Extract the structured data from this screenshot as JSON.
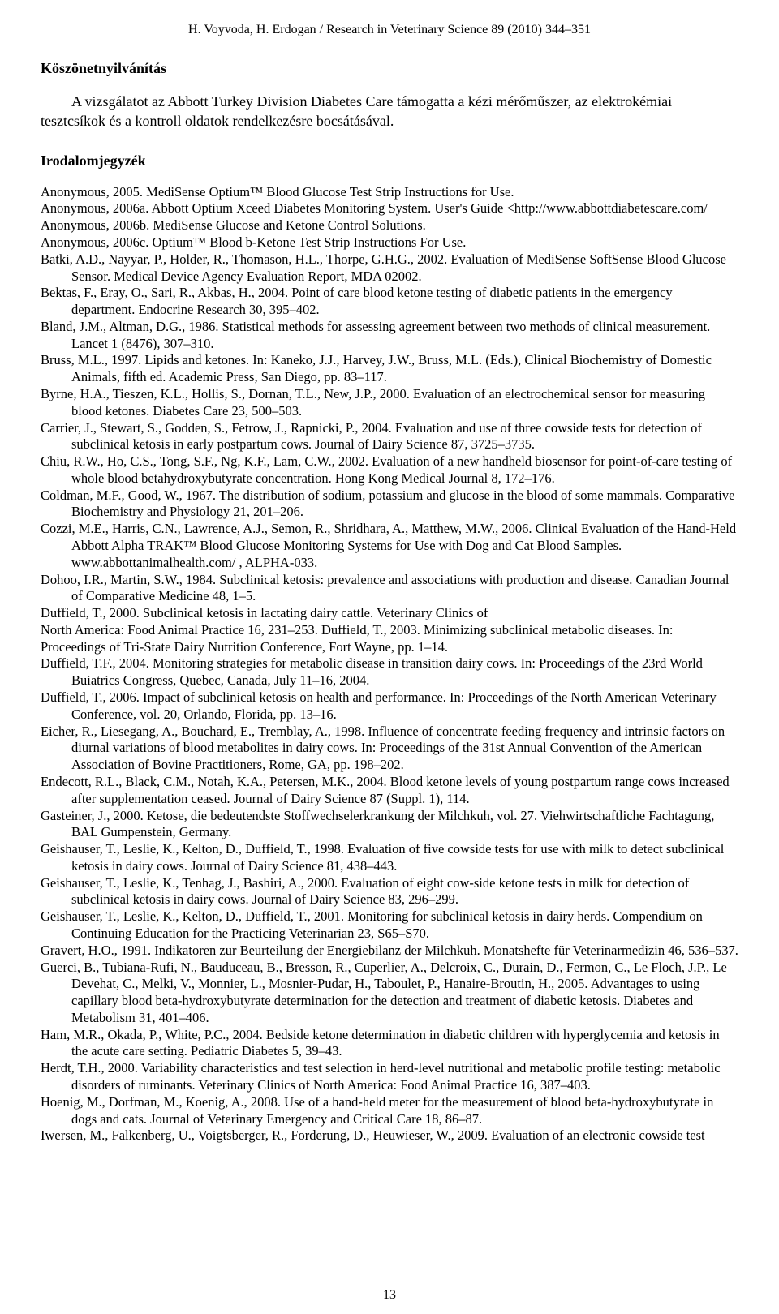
{
  "header": "H. Voyvoda, H. Erdogan / Research in Veterinary Science 89 (2010) 344–351",
  "ack_title": "Köszönetnyilvánítás",
  "ack_text": "A vizsgálatot az Abbott Turkey Division Diabetes Care támogatta a kézi mérőműszer, az elektrokémiai tesztcsíkok és a kontroll oldatok rendelkezésre bocsátásával.",
  "refs_title": "Irodalomjegyzék",
  "refs": [
    "Anonymous, 2005. MediSense Optium™ Blood Glucose Test Strip Instructions for Use.",
    "Anonymous, 2006a. Abbott Optium Xceed Diabetes Monitoring System. User's Guide <http://www.abbottdiabetescare.com/",
    "Anonymous, 2006b. MediSense Glucose and Ketone Control Solutions.",
    "Anonymous, 2006c. Optium™ Blood b-Ketone Test Strip Instructions For Use.",
    "Batki, A.D., Nayyar, P., Holder, R., Thomason, H.L., Thorpe, G.H.G., 2002. Evaluation of MediSense SoftSense Blood Glucose Sensor. Medical Device Agency Evaluation Report, MDA 02002.",
    "Bektas, F., Eray, O., Sari, R., Akbas, H., 2004. Point of care blood ketone testing of diabetic patients in the emergency department. Endocrine Research 30, 395–402.",
    "Bland, J.M., Altman, D.G., 1986. Statistical methods for assessing agreement between two methods of clinical measurement. Lancet 1 (8476), 307–310.",
    "Bruss, M.L., 1997. Lipids and ketones. In: Kaneko, J.J., Harvey, J.W., Bruss, M.L. (Eds.), Clinical Biochemistry of Domestic Animals, fifth ed. Academic Press, San Diego, pp. 83–117.",
    "Byrne, H.A., Tieszen, K.L., Hollis, S., Dornan, T.L., New, J.P., 2000. Evaluation of an electrochemical sensor for measuring blood ketones. Diabetes Care 23, 500–503.",
    "Carrier, J., Stewart, S., Godden, S., Fetrow, J., Rapnicki, P., 2004. Evaluation and use of three cowside tests for detection of subclinical ketosis in early postpartum cows. Journal of Dairy Science 87, 3725–3735.",
    "Chiu, R.W., Ho, C.S., Tong, S.F., Ng, K.F., Lam, C.W., 2002. Evaluation of a new handheld biosensor for point-of-care testing of whole blood betahydroxybutyrate concentration. Hong Kong Medical Journal 8, 172–176.",
    "Coldman, M.F., Good, W., 1967. The distribution of sodium, potassium and glucose in the blood of some mammals. Comparative Biochemistry and Physiology 21, 201–206.",
    "Cozzi, M.E., Harris, C.N., Lawrence, A.J., Semon, R., Shridhara, A., Matthew, M.W., 2006. Clinical Evaluation of the Hand-Held Abbott Alpha TRAK™ Blood Glucose Monitoring Systems for Use with Dog and Cat Blood Samples. www.abbottanimalhealth.com/ , ALPHA-033.",
    "Dohoo, I.R., Martin, S.W., 1984. Subclinical ketosis: prevalence and associations with production and disease. Canadian Journal of Comparative Medicine 48, 1–5.",
    "Duffield, T., 2000. Subclinical ketosis in lactating dairy cattle. Veterinary Clinics of",
    "North America: Food Animal Practice 16, 231–253. Duffield, T., 2003. Minimizing subclinical metabolic diseases. In: Proceedings of Tri-State Dairy Nutrition Conference, Fort Wayne, pp. 1–14.",
    "Duffield, T.F., 2004. Monitoring strategies for metabolic disease in transition dairy cows. In: Proceedings of the 23rd World Buiatrics Congress, Quebec, Canada, July 11–16, 2004.",
    "Duffield, T., 2006. Impact of subclinical ketosis on health and performance. In: Proceedings of the North American Veterinary Conference, vol. 20, Orlando, Florida, pp. 13–16.",
    "Eicher, R., Liesegang, A., Bouchard, E., Tremblay, A., 1998. Influence of concentrate feeding frequency and intrinsic factors on diurnal variations of blood metabolites in dairy cows. In: Proceedings of the 31st Annual Convention of the American Association of Bovine Practitioners, Rome, GA, pp. 198–202.",
    "Endecott, R.L., Black, C.M., Notah, K.A., Petersen, M.K., 2004. Blood ketone levels of young postpartum range cows increased after supplementation ceased. Journal of Dairy Science 87 (Suppl. 1), 114.",
    "Gasteiner, J., 2000. Ketose, die bedeutendste Stoffwechselerkrankung der Milchkuh, vol. 27. Viehwirtschaftliche Fachtagung, BAL Gumpenstein, Germany.",
    "Geishauser, T., Leslie, K., Kelton, D., Duffield, T., 1998. Evaluation of five cowside tests for use with milk to detect subclinical ketosis in dairy cows. Journal of Dairy Science 81, 438–443.",
    "Geishauser, T., Leslie, K., Tenhag, J., Bashiri, A., 2000. Evaluation of eight cow-side ketone tests in milk for detection of subclinical ketosis in dairy cows. Journal of Dairy Science 83, 296–299.",
    "Geishauser, T., Leslie, K., Kelton, D., Duffield, T., 2001. Monitoring for subclinical ketosis in dairy herds. Compendium on Continuing Education for the Practicing Veterinarian 23, S65–S70.",
    "Gravert, H.O., 1991. Indikatoren zur Beurteilung der Energiebilanz der Milchkuh. Monatshefte für Veterinarmedizin 46, 536–537.",
    "Guerci, B., Tubiana-Rufi, N., Bauduceau, B., Bresson, R., Cuperlier, A., Delcroix, C., Durain, D., Fermon, C., Le Floch, J.P., Le Devehat, C., Melki, V., Monnier, L., Mosnier-Pudar, H., Taboulet, P., Hanaire-Broutin, H., 2005. Advantages to using capillary blood beta-hydroxybutyrate determination for the detection and treatment of diabetic ketosis. Diabetes and Metabolism 31, 401–406.",
    "Ham, M.R., Okada, P., White, P.C., 2004. Bedside ketone determination in diabetic children with hyperglycemia and ketosis in the acute care setting. Pediatric Diabetes 5, 39–43.",
    "Herdt, T.H., 2000. Variability characteristics and test selection in herd-level nutritional and metabolic profile testing: metabolic disorders of ruminants. Veterinary Clinics of North America: Food Animal Practice 16, 387–403.",
    "Hoenig, M., Dorfman, M., Koenig, A., 2008. Use of a hand-held meter for the measurement of blood beta-hydroxybutyrate in dogs and cats. Journal of Veterinary Emergency and Critical Care 18, 86–87.",
    "Iwersen, M., Falkenberg, U., Voigtsberger, R., Forderung, D., Heuwieser, W., 2009. Evaluation of an electronic cowside test"
  ],
  "flat_ref_indices": [
    14,
    15
  ],
  "page_number": "13"
}
